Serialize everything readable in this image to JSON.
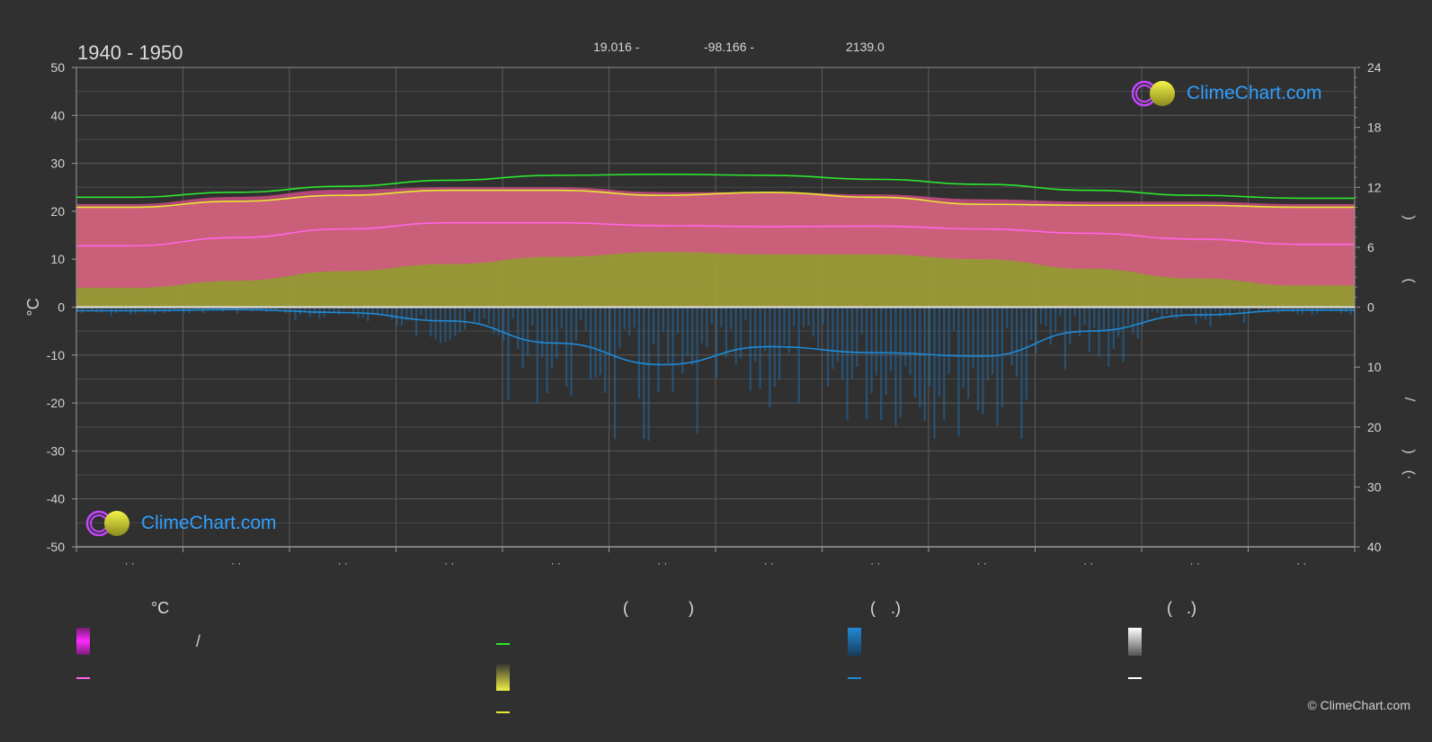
{
  "header": {
    "period": "1940 - 1950",
    "lat": "19.016 -",
    "lon": "-98.166 -",
    "elev": "2139.0"
  },
  "logo": {
    "text": "ClimeChart.com"
  },
  "copyright": "© ClimeChart.com",
  "legend": {
    "col1_header": "°C",
    "col1_slash": "/",
    "col2_header_open": "(",
    "col2_header_close": ")",
    "col3_header_open": "(",
    "col3_header_dot": ".)",
    "col4_header_open": "(",
    "col4_header_dot": ".)"
  },
  "colors": {
    "background": "#303030",
    "daylight": "#2ee62e",
    "sunshine": "#e8e832",
    "sunshine_fill": "#a6a63a",
    "temp_mean": "#ff66e6",
    "temp_range": "#d8508c",
    "precip": "#1f8ad6",
    "snow": "#e0e0e0"
  },
  "chart_data": {
    "type": "area",
    "title": "",
    "ylabel_left": "°C",
    "y_left_range": [
      -50,
      50
    ],
    "y_left_ticks": [
      "50",
      "40",
      "30",
      "20",
      "10",
      "0",
      "-10",
      "-20",
      "-30",
      "-40",
      "-50"
    ],
    "y_right_top_range": [
      0,
      24
    ],
    "y_right_top_ticks": [
      "24",
      "18",
      "12",
      "6",
      "0"
    ],
    "y_right_bottom_range": [
      0,
      40
    ],
    "y_right_bottom_ticks": [
      "10",
      "20",
      "30",
      "40"
    ],
    "right_axis_glyphs": [
      ")",
      "(",
      "/",
      ")",
      "(·"
    ],
    "x_tick_labels": [
      "· ·",
      "· ·",
      "· ·",
      "· ·",
      "· ·",
      "· ·",
      "· ·",
      "· ·",
      "· ·",
      "· ·",
      "· ·",
      "· ·"
    ],
    "months": 12,
    "grid": true,
    "series": [
      {
        "key": "daylight",
        "unit": "hours",
        "values": [
          11.0,
          11.5,
          12.1,
          12.7,
          13.2,
          13.3,
          13.2,
          12.8,
          12.3,
          11.7,
          11.2,
          10.9
        ]
      },
      {
        "key": "sunshine",
        "unit": "hours",
        "values": [
          10.0,
          10.6,
          11.2,
          11.7,
          11.7,
          11.2,
          11.5,
          11.0,
          10.3,
          10.2,
          10.2,
          10.0
        ]
      },
      {
        "key": "temp_mean",
        "unit": "°C",
        "values": [
          12.8,
          14.5,
          16.3,
          17.6,
          17.6,
          17.0,
          16.8,
          16.9,
          16.3,
          15.4,
          14.2,
          13.1
        ]
      },
      {
        "key": "temp_max",
        "unit": "°C",
        "values": [
          21.5,
          23.0,
          24.5,
          25.0,
          25.0,
          24.0,
          24.0,
          23.5,
          22.5,
          22.0,
          22.0,
          21.5
        ]
      },
      {
        "key": "temp_min",
        "unit": "°C",
        "values": [
          4.0,
          5.5,
          7.5,
          9.0,
          10.5,
          11.5,
          11.0,
          11.0,
          10.0,
          8.0,
          6.0,
          4.5
        ]
      },
      {
        "key": "precip",
        "unit": "mm",
        "values": [
          0.6,
          0.4,
          0.9,
          2.3,
          6.0,
          9.6,
          6.6,
          7.6,
          8.2,
          4.0,
          1.3,
          0.5
        ]
      }
    ]
  }
}
